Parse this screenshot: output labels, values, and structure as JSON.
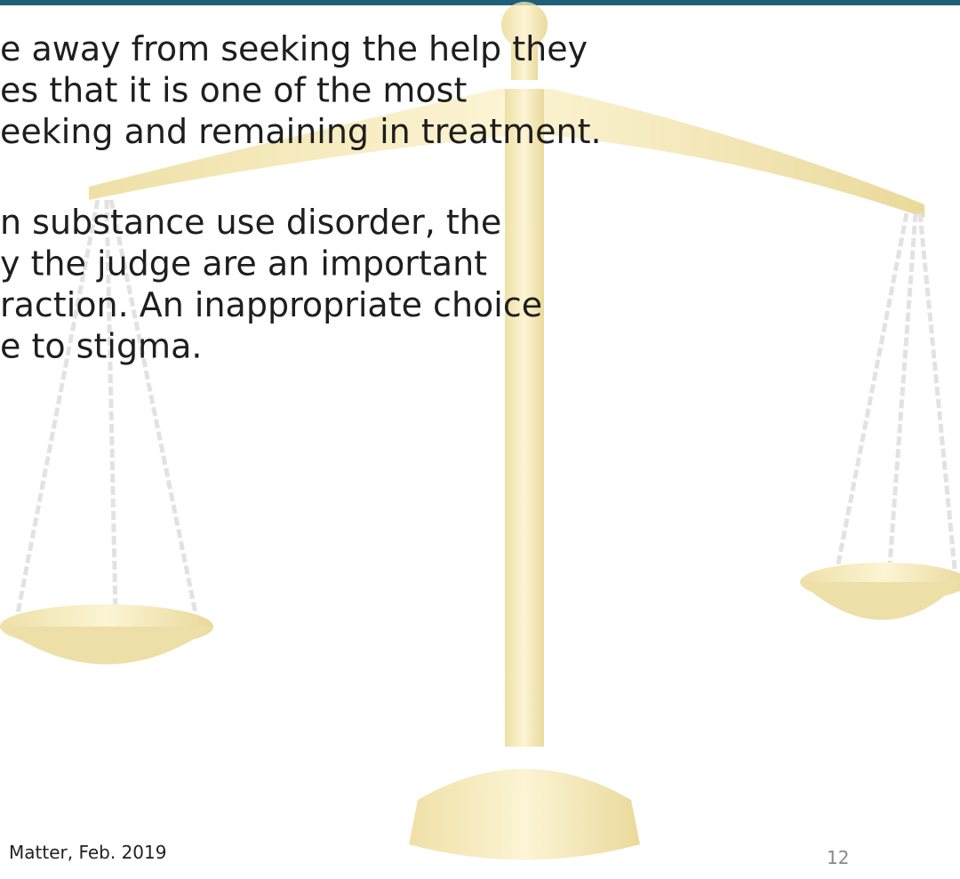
{
  "paragraphs": [
    {
      "lines": [
        "e away from seeking the help they",
        "es that it is one of the most",
        "eeking and remaining in treatment."
      ]
    },
    {
      "lines": [
        "n substance use disorder, the",
        "y the judge are an important",
        "raction. An inappropriate choice",
        "e to stigma."
      ]
    }
  ],
  "footer": {
    "citation": "Matter, Feb. 2019",
    "page_number": "12"
  }
}
